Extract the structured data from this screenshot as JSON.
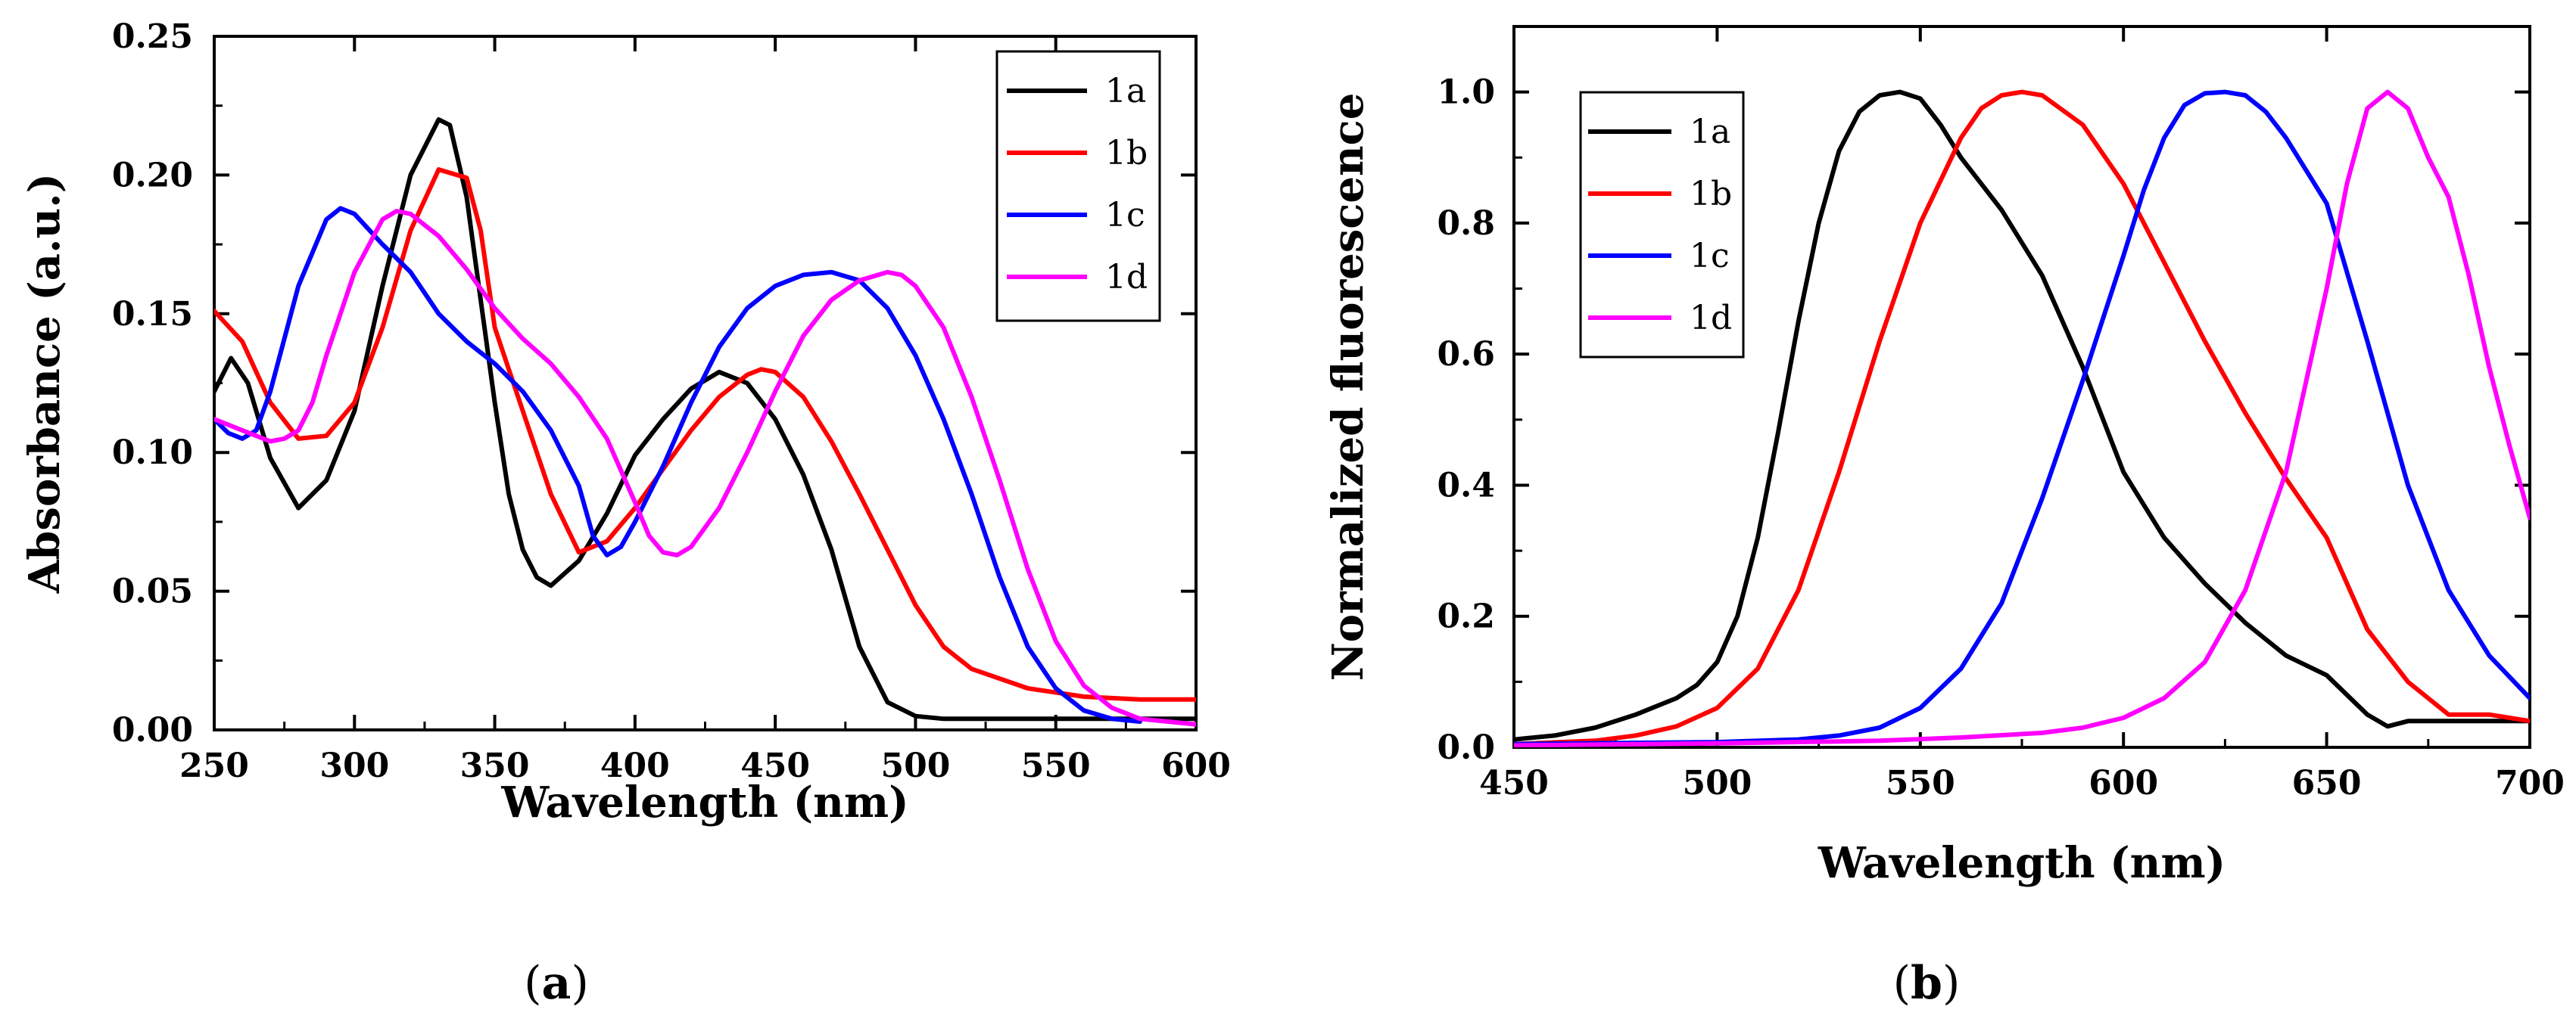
{
  "figure": {
    "panels": [
      {
        "label_open": "(",
        "label_letter": "a",
        "label_close": ")"
      },
      {
        "label_open": "(",
        "label_letter": "b",
        "label_close": ")"
      }
    ]
  },
  "chart_data": [
    {
      "type": "line",
      "panel": "a",
      "title": "",
      "xlabel": "Wavelength (nm)",
      "ylabel": "Absorbance (a.u.)",
      "xlim": [
        250,
        600
      ],
      "ylim": [
        0,
        0.25
      ],
      "xticks": [
        250,
        300,
        350,
        400,
        450,
        500,
        550,
        600
      ],
      "xtick_labels": [
        "250",
        "300",
        "350",
        "400",
        "450",
        "500",
        "550",
        "600"
      ],
      "yticks": [
        0,
        0.05,
        0.1,
        0.15,
        0.2,
        0.25
      ],
      "ytick_labels": [
        "0.00",
        "0.05",
        "0.10",
        "0.15",
        "0.20",
        "0.25"
      ],
      "grid": false,
      "legend": "top-right",
      "series": [
        {
          "name": "1a",
          "color": "#000000",
          "x": [
            250,
            256,
            262,
            270,
            280,
            290,
            300,
            310,
            320,
            330,
            334,
            340,
            345,
            350,
            355,
            360,
            365,
            370,
            380,
            390,
            400,
            410,
            420,
            430,
            440,
            450,
            460,
            470,
            480,
            490,
            500,
            510,
            530,
            550,
            580,
            600
          ],
          "y": [
            0.122,
            0.134,
            0.125,
            0.098,
            0.08,
            0.09,
            0.115,
            0.16,
            0.2,
            0.22,
            0.218,
            0.192,
            0.155,
            0.118,
            0.085,
            0.065,
            0.055,
            0.052,
            0.061,
            0.078,
            0.099,
            0.112,
            0.123,
            0.129,
            0.125,
            0.112,
            0.092,
            0.065,
            0.03,
            0.01,
            0.005,
            0.004,
            0.004,
            0.004,
            0.004,
            0.004
          ]
        },
        {
          "name": "1b",
          "color": "#ff0000",
          "x": [
            250,
            260,
            270,
            280,
            290,
            300,
            310,
            320,
            330,
            340,
            345,
            350,
            360,
            370,
            380,
            390,
            400,
            410,
            420,
            430,
            440,
            445,
            450,
            460,
            470,
            480,
            490,
            500,
            510,
            520,
            540,
            560,
            580,
            600
          ],
          "y": [
            0.151,
            0.14,
            0.118,
            0.105,
            0.106,
            0.118,
            0.145,
            0.18,
            0.202,
            0.199,
            0.18,
            0.145,
            0.115,
            0.085,
            0.064,
            0.068,
            0.08,
            0.094,
            0.108,
            0.12,
            0.128,
            0.13,
            0.129,
            0.12,
            0.104,
            0.085,
            0.065,
            0.045,
            0.03,
            0.022,
            0.015,
            0.012,
            0.011,
            0.011
          ]
        },
        {
          "name": "1c",
          "color": "#0000ff",
          "x": [
            250,
            255,
            260,
            265,
            270,
            280,
            290,
            295,
            300,
            310,
            320,
            330,
            340,
            350,
            360,
            370,
            380,
            385,
            390,
            395,
            400,
            410,
            420,
            430,
            440,
            450,
            460,
            470,
            480,
            490,
            500,
            510,
            520,
            530,
            540,
            550,
            560,
            570,
            580
          ],
          "y": [
            0.112,
            0.107,
            0.105,
            0.108,
            0.122,
            0.16,
            0.184,
            0.188,
            0.186,
            0.175,
            0.165,
            0.15,
            0.14,
            0.132,
            0.122,
            0.108,
            0.088,
            0.07,
            0.063,
            0.066,
            0.075,
            0.095,
            0.118,
            0.138,
            0.152,
            0.16,
            0.164,
            0.165,
            0.162,
            0.152,
            0.135,
            0.112,
            0.085,
            0.055,
            0.03,
            0.015,
            0.007,
            0.004,
            0.003
          ]
        },
        {
          "name": "1d",
          "color": "#ff00ff",
          "x": [
            250,
            260,
            270,
            275,
            280,
            285,
            290,
            300,
            310,
            315,
            320,
            330,
            340,
            350,
            360,
            370,
            380,
            390,
            400,
            405,
            410,
            415,
            420,
            430,
            440,
            450,
            460,
            470,
            480,
            490,
            495,
            500,
            510,
            520,
            530,
            540,
            550,
            560,
            570,
            580,
            590,
            600
          ],
          "y": [
            0.112,
            0.108,
            0.104,
            0.105,
            0.108,
            0.118,
            0.135,
            0.165,
            0.184,
            0.187,
            0.186,
            0.178,
            0.166,
            0.152,
            0.141,
            0.132,
            0.12,
            0.105,
            0.082,
            0.07,
            0.064,
            0.063,
            0.066,
            0.08,
            0.1,
            0.122,
            0.142,
            0.155,
            0.162,
            0.165,
            0.164,
            0.16,
            0.145,
            0.12,
            0.09,
            0.058,
            0.032,
            0.016,
            0.008,
            0.004,
            0.003,
            0.002
          ]
        }
      ]
    },
    {
      "type": "line",
      "panel": "b",
      "title": "",
      "xlabel": "Wavelength (nm)",
      "ylabel": "Normalized fluorescence",
      "xlim": [
        450,
        700
      ],
      "ylim": [
        0,
        1.1
      ],
      "xticks": [
        450,
        500,
        550,
        600,
        650,
        700
      ],
      "xtick_labels": [
        "450",
        "500",
        "550",
        "600",
        "650",
        "700"
      ],
      "yticks": [
        0,
        0.2,
        0.4,
        0.6,
        0.8,
        1.0
      ],
      "ytick_labels": [
        "0.0",
        "0.2",
        "0.4",
        "0.6",
        "0.8",
        "1.0"
      ],
      "grid": false,
      "legend": "top-left",
      "series": [
        {
          "name": "1a",
          "color": "#000000",
          "x": [
            450,
            460,
            470,
            480,
            490,
            495,
            500,
            505,
            510,
            515,
            520,
            525,
            530,
            535,
            540,
            545,
            550,
            555,
            560,
            570,
            580,
            590,
            600,
            610,
            620,
            630,
            640,
            650,
            655,
            660,
            665,
            670,
            680,
            690,
            700
          ],
          "y": [
            0.012,
            0.018,
            0.03,
            0.05,
            0.075,
            0.095,
            0.13,
            0.2,
            0.32,
            0.48,
            0.65,
            0.8,
            0.91,
            0.97,
            0.995,
            1.0,
            0.99,
            0.95,
            0.9,
            0.82,
            0.72,
            0.58,
            0.42,
            0.32,
            0.25,
            0.19,
            0.14,
            0.11,
            0.08,
            0.05,
            0.032,
            0.04,
            0.04,
            0.04,
            0.04
          ]
        },
        {
          "name": "1b",
          "color": "#ff0000",
          "x": [
            450,
            470,
            480,
            490,
            500,
            510,
            520,
            530,
            540,
            550,
            560,
            565,
            570,
            575,
            580,
            590,
            600,
            610,
            620,
            630,
            640,
            650,
            660,
            670,
            680,
            690,
            700
          ],
          "y": [
            0.005,
            0.01,
            0.018,
            0.032,
            0.06,
            0.12,
            0.24,
            0.42,
            0.62,
            0.8,
            0.93,
            0.975,
            0.995,
            1.0,
            0.995,
            0.95,
            0.86,
            0.74,
            0.62,
            0.51,
            0.41,
            0.32,
            0.18,
            0.1,
            0.05,
            0.05,
            0.04
          ]
        },
        {
          "name": "1c",
          "color": "#0000ff",
          "x": [
            450,
            500,
            520,
            530,
            540,
            550,
            560,
            570,
            580,
            590,
            600,
            605,
            610,
            615,
            620,
            625,
            630,
            635,
            640,
            650,
            660,
            670,
            680,
            690,
            700
          ],
          "y": [
            0.005,
            0.008,
            0.012,
            0.018,
            0.03,
            0.06,
            0.12,
            0.22,
            0.38,
            0.56,
            0.75,
            0.85,
            0.93,
            0.98,
            0.998,
            1.0,
            0.995,
            0.97,
            0.93,
            0.83,
            0.62,
            0.4,
            0.24,
            0.14,
            0.075
          ]
        },
        {
          "name": "1d",
          "color": "#ff00ff",
          "x": [
            450,
            500,
            540,
            560,
            580,
            590,
            600,
            610,
            620,
            630,
            640,
            645,
            650,
            655,
            660,
            665,
            670,
            675,
            680,
            685,
            690,
            695,
            700
          ],
          "y": [
            0.003,
            0.006,
            0.01,
            0.015,
            0.022,
            0.03,
            0.045,
            0.075,
            0.13,
            0.24,
            0.42,
            0.56,
            0.7,
            0.86,
            0.975,
            1.0,
            0.975,
            0.9,
            0.84,
            0.72,
            0.58,
            0.46,
            0.35
          ]
        }
      ]
    }
  ]
}
